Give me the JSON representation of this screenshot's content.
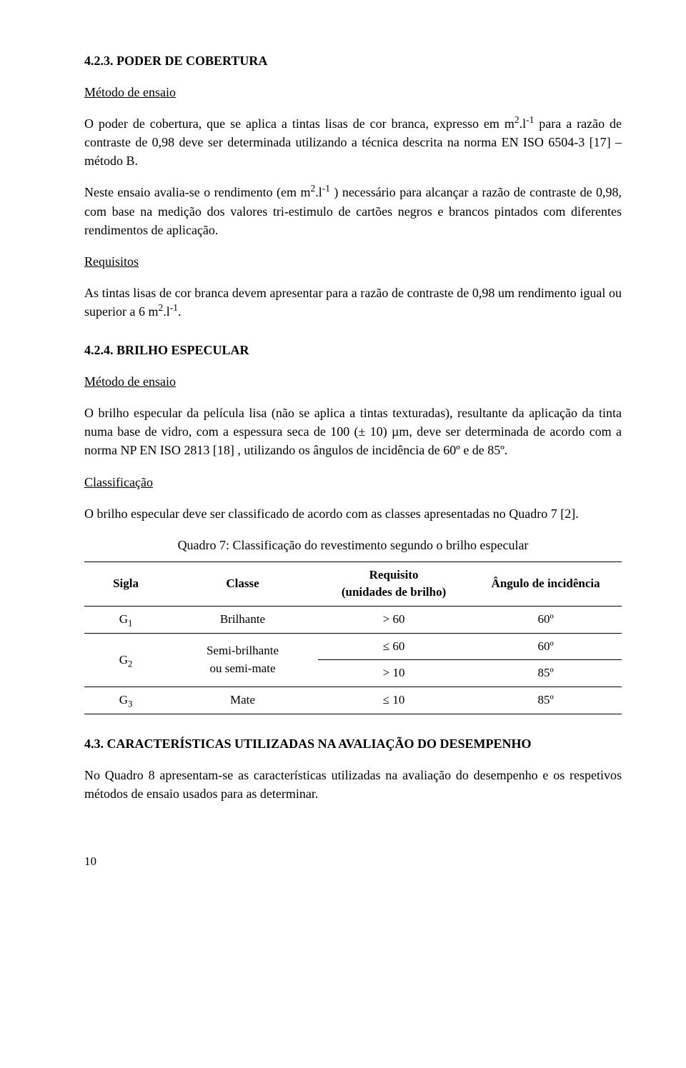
{
  "s423": {
    "heading": "4.2.3. PODER DE COBERTURA",
    "metodo": "Método de ensaio",
    "p1a": "O poder de cobertura, que se aplica a tintas lisas de cor branca, expresso em m",
    "p1b": ".l",
    "p1c": " para a razão de contraste de 0,98 deve ser determinada utilizando a técnica descrita na norma EN ISO 6504-3 [17] – método B.",
    "p2a": "Neste ensaio avalia-se o rendimento (em m",
    "p2b": ".l",
    "p2c": " ) necessário para alcançar a razão de contraste de 0,98, com base na medição dos valores tri-estimulo de cartões negros e brancos pintados com diferentes rendimentos de aplicação.",
    "requisitos_label": "Requisitos",
    "p3a": "As tintas lisas de cor branca devem apresentar para a razão de contraste de 0,98 um rendimento igual ou superior a 6 m",
    "p3b": ".l",
    "p3c": "."
  },
  "s424": {
    "heading": "4.2.4. BRILHO ESPECULAR",
    "metodo": "Método de ensaio",
    "p1": "O brilho especular da película lisa (não se aplica a tintas texturadas), resultante da aplicação da tinta numa base de vidro, com a espessura seca de 100 (± 10) µm, deve ser determinada de acordo com a norma NP EN ISO 2813 [18] , utilizando os ângulos de incidência de 60º e de 85º.",
    "classificacao_label": "Classificação",
    "p2": "O brilho especular deve ser classificado de acordo com as classes apresentadas no Quadro 7 [2].",
    "table_caption": "Quadro 7: Classificação do revestimento segundo o brilho especular",
    "headers": {
      "sigla": "Sigla",
      "classe": "Classe",
      "requisito_line1": "Requisito",
      "requisito_line2": "(unidades de brilho)",
      "angulo": "Ângulo de incidência"
    },
    "rows": {
      "r1": {
        "sigla": "G",
        "sub": "1",
        "classe": "Brilhante",
        "req": "> 60",
        "ang": "60º"
      },
      "r2a": {
        "sigla": "G",
        "sub": "2",
        "classe_l1": "Semi-brilhante",
        "classe_l2": "ou semi-mate",
        "req": "≤  60",
        "ang": "60º"
      },
      "r2b": {
        "req": "> 10",
        "ang": "85º"
      },
      "r3": {
        "sigla": "G",
        "sub": "3",
        "classe": "Mate",
        "req": "≤  10",
        "ang": "85º"
      }
    }
  },
  "s43": {
    "heading": "4.3. CARACTERÍSTICAS UTILIZADAS NA AVALIAÇÃO DO DESEMPENHO",
    "p1": "No Quadro 8 apresentam-se as características utilizadas na avaliação do desempenho e os respetivos métodos de ensaio usados para as determinar."
  },
  "page_number": "10",
  "sup2": "2",
  "supm1": "-1"
}
